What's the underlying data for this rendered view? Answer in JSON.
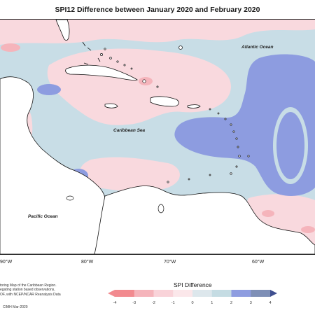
{
  "title": "SPI12 Difference between January 2020 and February 2020",
  "labels": {
    "atlantic": "Atlantic Ocean",
    "caribbean": "Caribbean Sea",
    "pacific": "Pacific Ocean"
  },
  "longitude_ticks": [
    "90°W",
    "80°W",
    "70°W",
    "60°W"
  ],
  "legend": {
    "title": "SPI Difference",
    "ticks": [
      "-4",
      "-3",
      "-2",
      "-1",
      "0",
      "1",
      "2",
      "3",
      "4"
    ],
    "colors": [
      "#f28a8f",
      "#f5b4bb",
      "#f9d3d9",
      "#fbe7ea",
      "#dde7ec",
      "#c5dce3",
      "#8e9de0",
      "#7e8fb6",
      "#3f4f8f"
    ]
  },
  "credits": [
    "toring Map of the Caribbean Region.",
    "egating station based observations,",
    "OF, with NCEP/NCAR Reanalysis Data"
  ],
  "credits_date": "CIMH Mar-2020",
  "colors": {
    "land": "#ffffff",
    "sea_neutral": "#c8dde6",
    "dry": "#f9d9de",
    "wet": "#8d9ce0",
    "coast": "#111111"
  }
}
